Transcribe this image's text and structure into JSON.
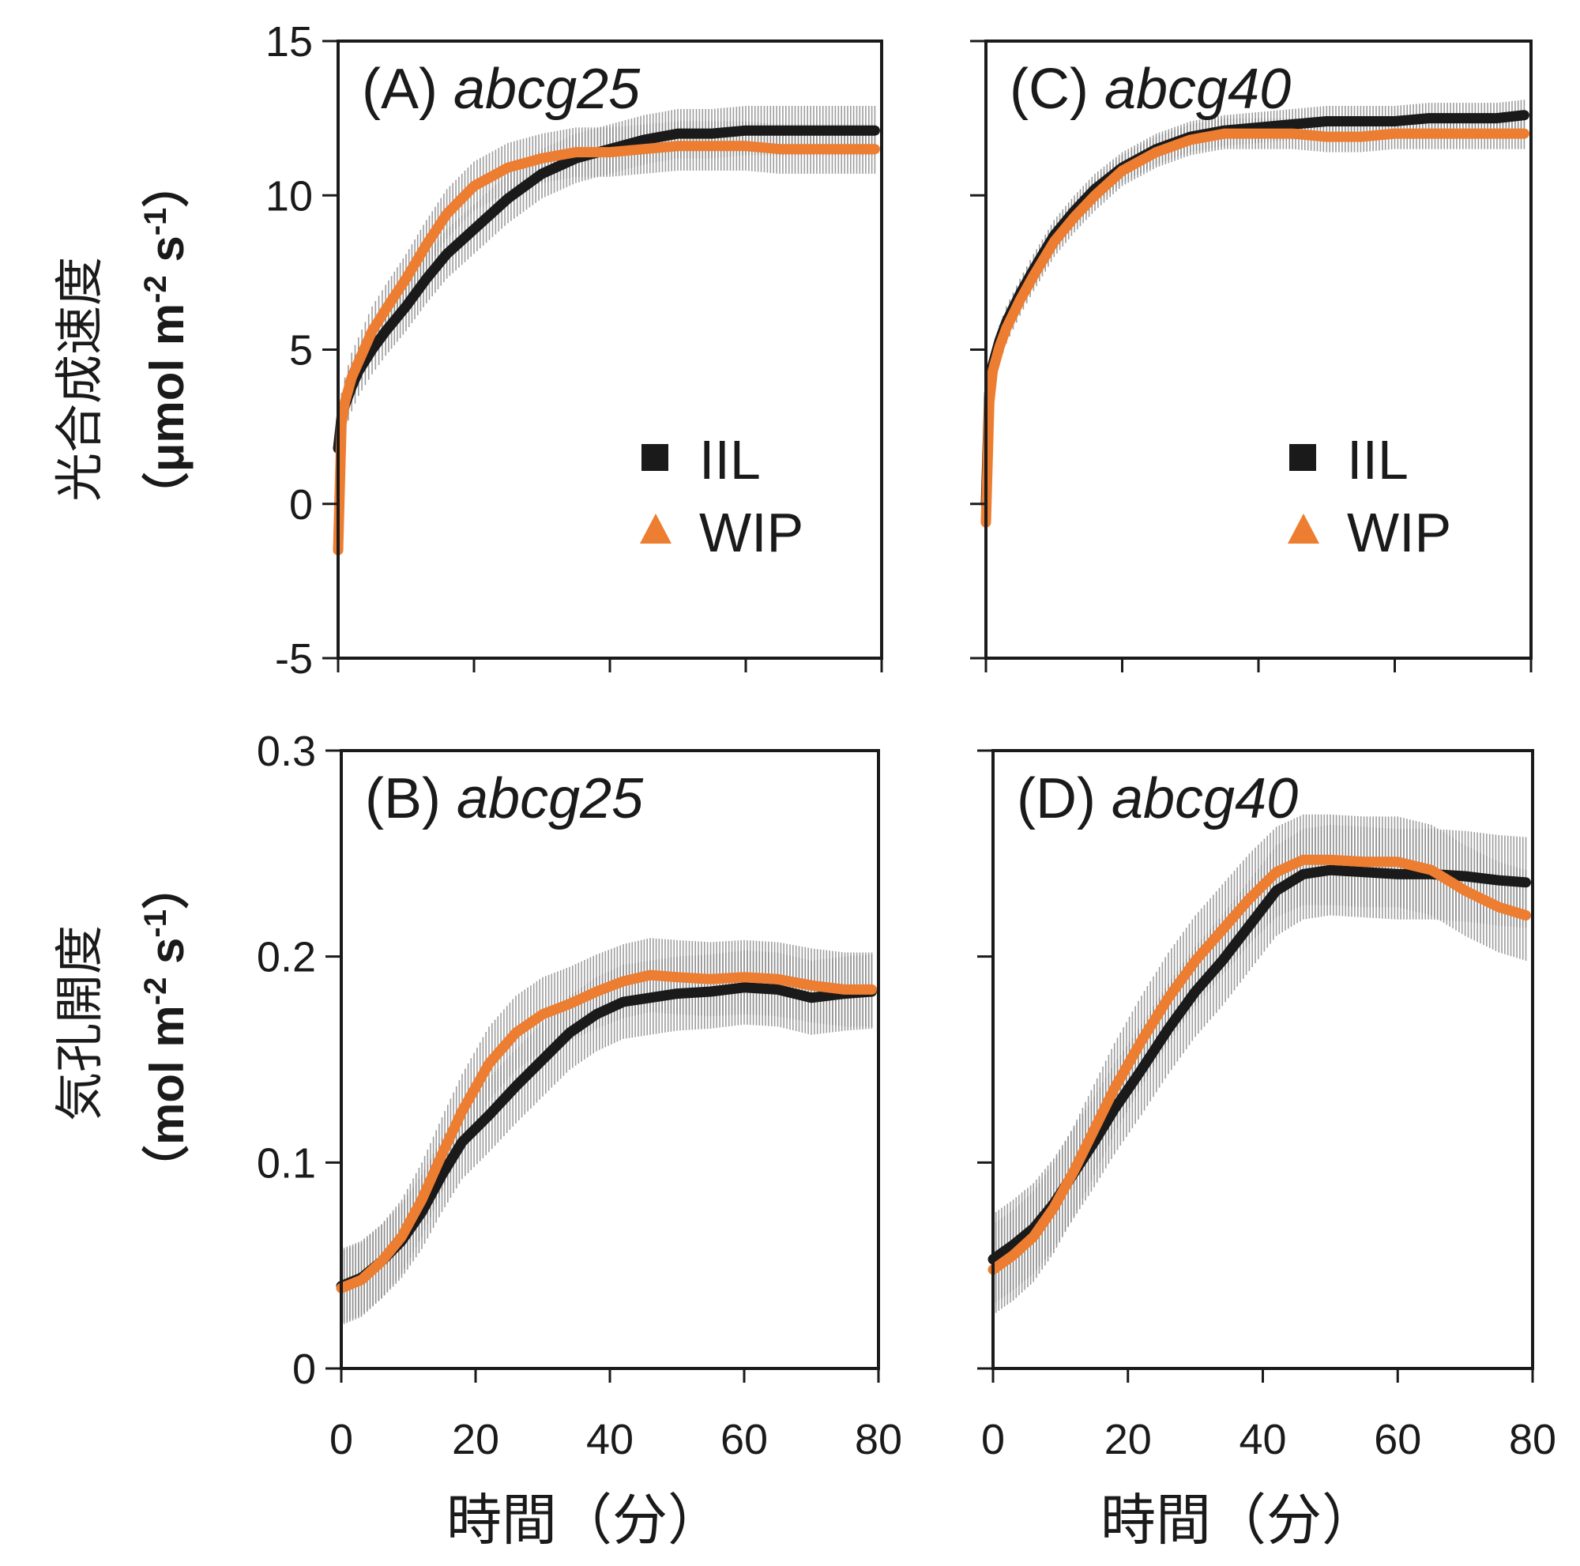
{
  "figure": {
    "y_titles": {
      "top": {
        "main": "光合成速度",
        "paren_open": "（",
        "unit": "μmol m",
        "sup1": "-2",
        "unit2": " s",
        "sup2": "-1",
        "paren_close": "）"
      },
      "bottom": {
        "main": "気孔開度",
        "paren_open": "（",
        "unit": "mol m",
        "sup1": "-2",
        "unit2": " s",
        "sup2": "-1",
        "paren_close": "）"
      }
    },
    "x_title": "時間（分）",
    "legend": {
      "iil": "IIL",
      "wip": "WIP"
    },
    "colors": {
      "iil": "#1a1a1a",
      "wip": "#ed7d31",
      "error": "#8c8c8c",
      "axis": "#1a1a1a"
    },
    "marker_icons": {
      "iil": "square-marker",
      "wip": "triangle-marker"
    }
  },
  "chart_data": [
    {
      "id": "A",
      "type": "line",
      "label_prefix": "(A) ",
      "gene": "abcg25",
      "xlim": [
        0,
        80
      ],
      "ylim": [
        -5,
        15
      ],
      "xticks": [
        0,
        20,
        40,
        60,
        80
      ],
      "yticks": [
        -5,
        0,
        5,
        10,
        15
      ],
      "ytick_labels": [
        "-5",
        "0",
        "5",
        "10",
        "15"
      ],
      "show_legend": true,
      "series": [
        {
          "name": "IIL",
          "x": [
            0,
            0.5,
            1,
            2,
            3,
            5,
            7,
            10,
            13,
            16,
            20,
            25,
            30,
            35,
            40,
            45,
            50,
            55,
            60,
            65,
            70,
            75,
            79
          ],
          "y": [
            1.8,
            2.8,
            3.2,
            3.8,
            4.3,
            5.0,
            5.6,
            6.4,
            7.3,
            8.1,
            8.9,
            9.9,
            10.7,
            11.2,
            11.5,
            11.8,
            12.0,
            12.0,
            12.1,
            12.1,
            12.1,
            12.1,
            12.1
          ],
          "err": 0.8
        },
        {
          "name": "WIP",
          "x": [
            0,
            0.5,
            1,
            2,
            3,
            5,
            7,
            10,
            13,
            16,
            20,
            25,
            30,
            35,
            40,
            45,
            50,
            55,
            60,
            65,
            70,
            75,
            79
          ],
          "y": [
            -1.5,
            2.6,
            3.3,
            4.1,
            4.6,
            5.6,
            6.3,
            7.3,
            8.4,
            9.4,
            10.3,
            10.9,
            11.2,
            11.4,
            11.4,
            11.5,
            11.6,
            11.6,
            11.6,
            11.5,
            11.5,
            11.5,
            11.5
          ],
          "err": 0.8
        }
      ]
    },
    {
      "id": "C",
      "type": "line",
      "label_prefix": "(C) ",
      "gene": "abcg40",
      "xlim": [
        0,
        80
      ],
      "ylim": [
        -5,
        15
      ],
      "xticks": [
        0,
        20,
        40,
        60,
        80
      ],
      "yticks": [
        -5,
        0,
        5,
        10,
        15
      ],
      "ytick_labels": [],
      "show_legend": true,
      "series": [
        {
          "name": "IIL",
          "x": [
            0,
            0.5,
            1,
            2,
            3,
            5,
            7,
            10,
            13,
            16,
            20,
            25,
            30,
            35,
            40,
            45,
            50,
            55,
            60,
            65,
            70,
            75,
            79
          ],
          "y": [
            0,
            3.6,
            4.5,
            5.3,
            5.9,
            6.8,
            7.6,
            8.7,
            9.5,
            10.2,
            10.9,
            11.5,
            11.9,
            12.1,
            12.2,
            12.3,
            12.4,
            12.4,
            12.4,
            12.5,
            12.5,
            12.5,
            12.6
          ],
          "err": 0.5
        },
        {
          "name": "WIP",
          "x": [
            0,
            0.5,
            1,
            2,
            3,
            5,
            7,
            10,
            13,
            16,
            20,
            25,
            30,
            35,
            40,
            45,
            50,
            55,
            60,
            65,
            70,
            75,
            79
          ],
          "y": [
            -0.6,
            3.3,
            4.3,
            5.1,
            5.7,
            6.6,
            7.4,
            8.5,
            9.3,
            10.0,
            10.8,
            11.4,
            11.8,
            12.0,
            12.0,
            12.0,
            11.9,
            11.9,
            12.0,
            12.0,
            12.0,
            12.0,
            12.0
          ],
          "err": 0.5
        }
      ]
    },
    {
      "id": "B",
      "type": "line",
      "label_prefix": "(B) ",
      "gene": "abcg25",
      "xlim": [
        0,
        80
      ],
      "ylim": [
        0,
        0.3
      ],
      "xticks": [
        0,
        20,
        40,
        60,
        80
      ],
      "yticks": [
        0,
        0.1,
        0.2,
        0.3
      ],
      "ytick_labels": [
        "0",
        "0.1",
        "0.2",
        "0.3"
      ],
      "xtick_labels": [
        "0",
        "20",
        "40",
        "60",
        "80"
      ],
      "show_legend": false,
      "series": [
        {
          "name": "IIL",
          "x": [
            0,
            3,
            6,
            9,
            12,
            15,
            18,
            22,
            26,
            30,
            34,
            38,
            42,
            46,
            50,
            55,
            60,
            65,
            70,
            75,
            79
          ],
          "y": [
            0.04,
            0.044,
            0.052,
            0.062,
            0.076,
            0.094,
            0.11,
            0.123,
            0.137,
            0.15,
            0.163,
            0.172,
            0.178,
            0.18,
            0.182,
            0.183,
            0.185,
            0.184,
            0.18,
            0.182,
            0.183
          ],
          "err": 0.018
        },
        {
          "name": "WIP",
          "x": [
            0,
            3,
            6,
            9,
            12,
            15,
            18,
            22,
            26,
            30,
            34,
            38,
            42,
            46,
            50,
            55,
            60,
            65,
            70,
            75,
            79
          ],
          "y": [
            0.039,
            0.043,
            0.052,
            0.064,
            0.082,
            0.104,
            0.125,
            0.148,
            0.163,
            0.172,
            0.177,
            0.183,
            0.188,
            0.191,
            0.19,
            0.189,
            0.19,
            0.189,
            0.186,
            0.184,
            0.184
          ],
          "err": 0.018
        }
      ]
    },
    {
      "id": "D",
      "type": "line",
      "label_prefix": "(D) ",
      "gene": "abcg40",
      "xlim": [
        0,
        80
      ],
      "ylim": [
        0,
        0.3
      ],
      "xticks": [
        0,
        20,
        40,
        60,
        80
      ],
      "yticks": [
        0,
        0.1,
        0.2,
        0.3
      ],
      "ytick_labels": [],
      "xtick_labels": [
        "0",
        "20",
        "40",
        "60",
        "80"
      ],
      "show_legend": false,
      "series": [
        {
          "name": "IIL",
          "x": [
            0,
            3,
            6,
            9,
            12,
            15,
            18,
            22,
            26,
            30,
            34,
            38,
            42,
            46,
            50,
            55,
            60,
            65,
            70,
            75,
            79
          ],
          "y": [
            0.053,
            0.06,
            0.068,
            0.08,
            0.095,
            0.11,
            0.126,
            0.145,
            0.165,
            0.183,
            0.198,
            0.215,
            0.232,
            0.24,
            0.242,
            0.241,
            0.24,
            0.24,
            0.239,
            0.237,
            0.236
          ],
          "err": 0.022
        },
        {
          "name": "WIP",
          "x": [
            0,
            3,
            6,
            9,
            12,
            15,
            18,
            22,
            26,
            30,
            34,
            38,
            42,
            46,
            50,
            55,
            60,
            65,
            70,
            75,
            79
          ],
          "y": [
            0.048,
            0.055,
            0.064,
            0.078,
            0.096,
            0.116,
            0.136,
            0.159,
            0.18,
            0.198,
            0.213,
            0.228,
            0.241,
            0.247,
            0.247,
            0.246,
            0.246,
            0.242,
            0.232,
            0.224,
            0.22
          ],
          "err": 0.022
        }
      ]
    }
  ]
}
